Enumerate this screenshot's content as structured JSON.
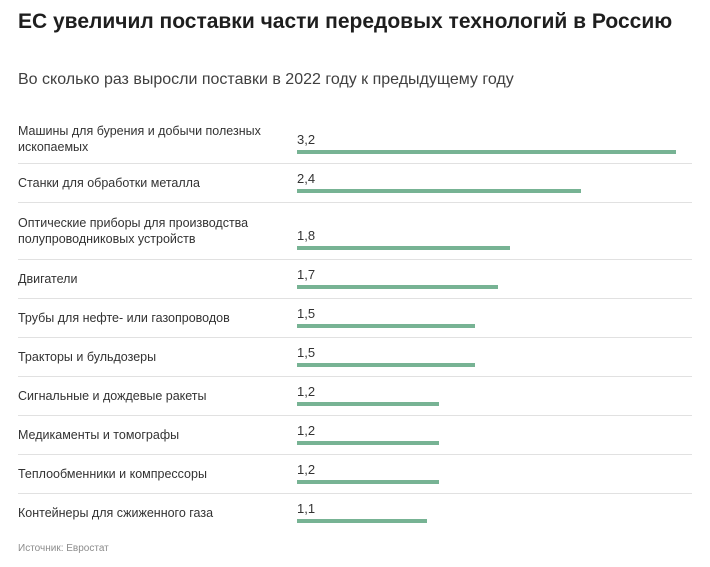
{
  "title": "ЕС увеличил поставки части передовых технологий в Россию",
  "subtitle": "Во сколько раз выросли поставки в 2022 году к предыдущему году",
  "source": "Источник: Евростат",
  "colors": {
    "bar": "#77b394"
  },
  "chart_data": {
    "type": "bar",
    "orientation": "horizontal",
    "title": "ЕС увеличил поставки части передовых технологий в Россию",
    "subtitle": "Во сколько раз выросли поставки в 2022 году к предыдущему году",
    "categories": [
      "Машины для бурения и добычи полезных ископаемых",
      "Станки для обработки металла",
      "Оптические приборы для производства полупроводниковых устройств",
      "Двигатели",
      "Трубы для нефте- или газопроводов",
      "Тракторы и бульдозеры",
      "Сигнальные и дождевые ракеты",
      "Медикаменты и томографы",
      "Теплообменники и компрессоры",
      "Контейнеры для сжиженного газа"
    ],
    "values": [
      3.2,
      2.4,
      1.8,
      1.7,
      1.5,
      1.5,
      1.2,
      1.2,
      1.2,
      1.1
    ],
    "value_labels": [
      "3,2",
      "2,4",
      "1,8",
      "1,7",
      "1,5",
      "1,5",
      "1,2",
      "1,2",
      "1,2",
      "1,1"
    ],
    "grid": false,
    "legend": "none",
    "source": "Источник: Евростат"
  }
}
